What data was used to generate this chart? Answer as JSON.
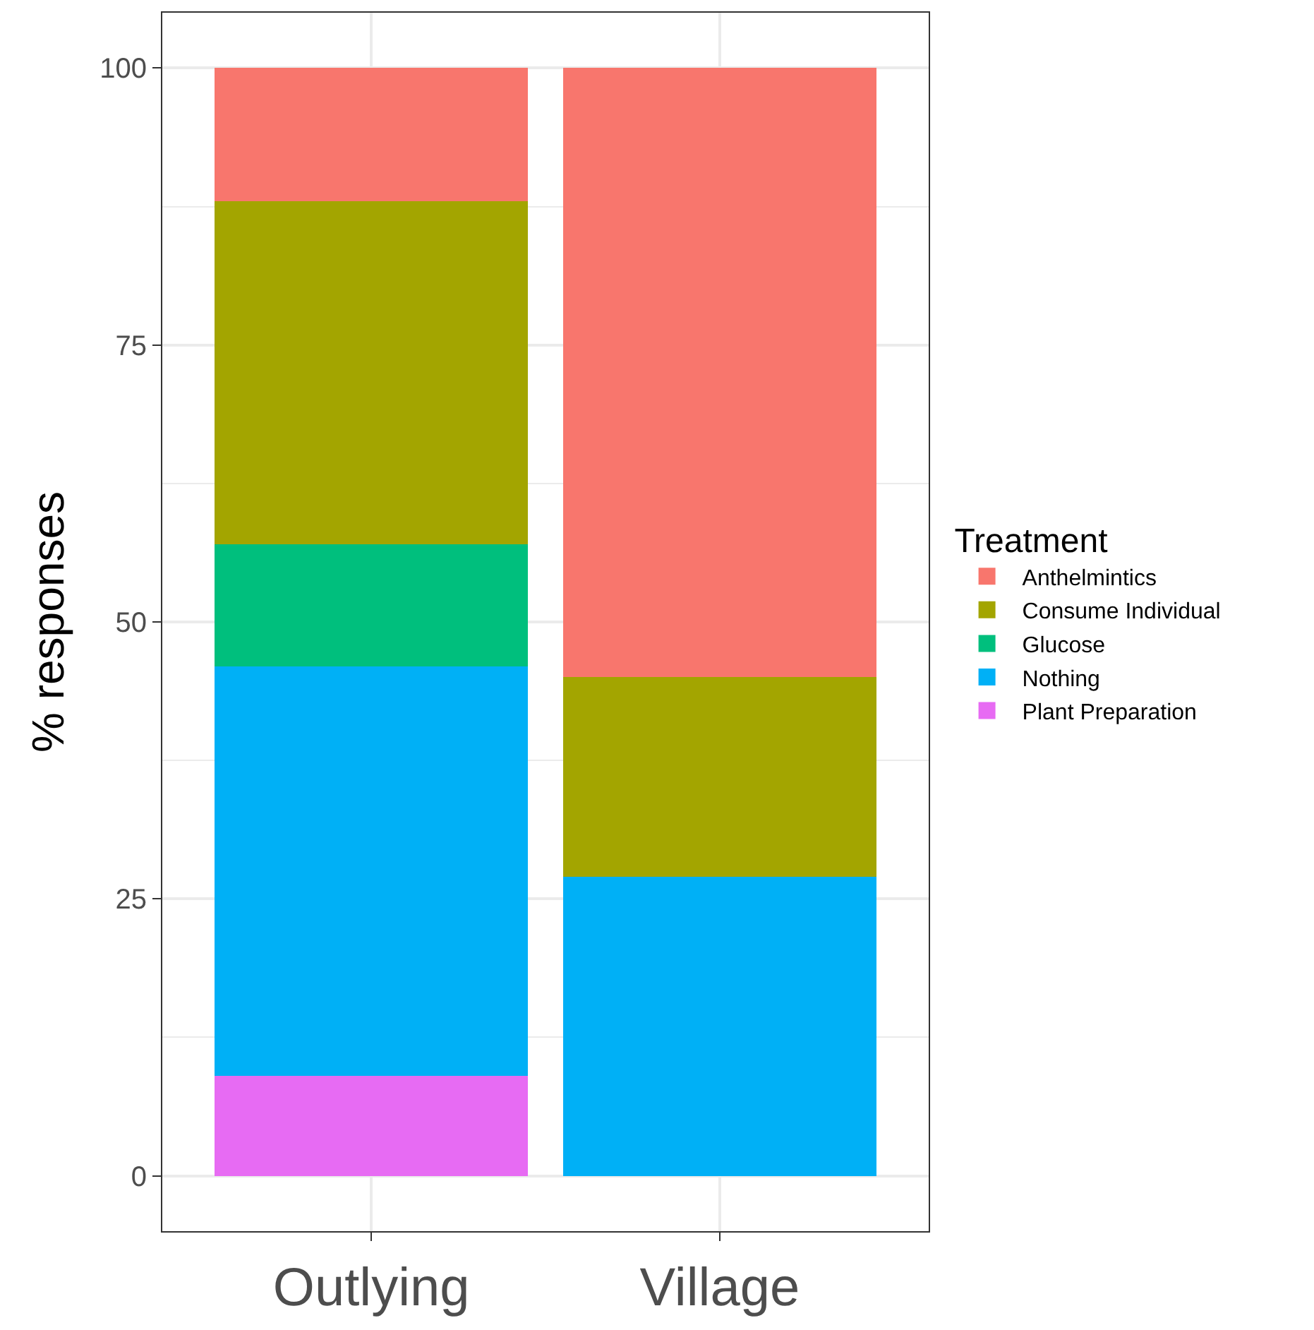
{
  "chart_data": {
    "type": "bar",
    "stacked": true,
    "ylabel": "% responses",
    "legend_title": "Treatment",
    "categories": [
      "Outlying",
      "Village"
    ],
    "series": [
      {
        "name": "Plant Preparation",
        "color": "#e76bf3",
        "values": [
          9,
          0
        ]
      },
      {
        "name": "Nothing",
        "color": "#00b0f6",
        "values": [
          37,
          27
        ]
      },
      {
        "name": "Glucose",
        "color": "#00bf7d",
        "values": [
          11,
          0
        ]
      },
      {
        "name": "Consume Individual",
        "color": "#a3a500",
        "values": [
          31,
          18
        ]
      },
      {
        "name": "Anthelmintics",
        "color": "#f8766d",
        "values": [
          12,
          55
        ]
      }
    ],
    "ylim": [
      -5,
      105
    ],
    "yticks": [
      0,
      25,
      50,
      75,
      100
    ],
    "grid": true,
    "legend": "right"
  }
}
